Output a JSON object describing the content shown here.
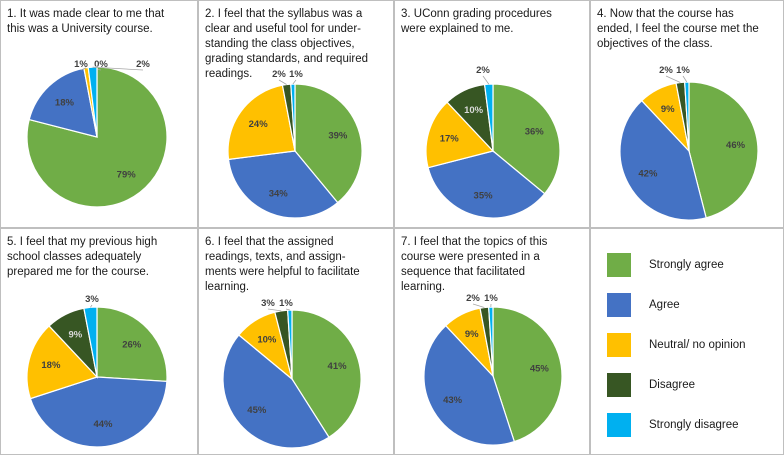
{
  "colors": {
    "strongly_agree": "#70ad47",
    "agree": "#4472c4",
    "neutral": "#ffc000",
    "disagree": "#375623",
    "strongly_disagree": "#00b0f0"
  },
  "legend": [
    {
      "label": "Strongly agree",
      "color": "#70ad47"
    },
    {
      "label": "Agree",
      "color": "#4472c4"
    },
    {
      "label": "Neutral/ no opinion",
      "color": "#ffc000"
    },
    {
      "label": "Disagree",
      "color": "#375623"
    },
    {
      "label": "Strongly disagree",
      "color": "#00b0f0"
    }
  ],
  "chart_data": [
    {
      "type": "pie",
      "title": "1. It was made clear to me that\nthis was a University course.",
      "categories": [
        "Strongly agree",
        "Agree",
        "Neutral/ no opinion",
        "Disagree",
        "Strongly disagree"
      ],
      "values": [
        79,
        18,
        1,
        0,
        2
      ],
      "labels": [
        "79%",
        "18%",
        "1%",
        "0%",
        "2%"
      ]
    },
    {
      "type": "pie",
      "title": "2. I feel that the syllabus was a\nclear and useful tool for under-\nstanding the class objectives,\ngrading standards, and required\nreadings.",
      "categories": [
        "Strongly agree",
        "Agree",
        "Neutral/ no opinion",
        "Disagree",
        "Strongly disagree"
      ],
      "values": [
        39,
        34,
        24,
        2,
        1
      ],
      "labels": [
        "39%",
        "34%",
        "24%",
        "2%",
        "1%"
      ]
    },
    {
      "type": "pie",
      "title": "3. UConn grading procedures\nwere explained to me.",
      "categories": [
        "Strongly agree",
        "Agree",
        "Neutral/ no opinion",
        "Disagree",
        "Strongly disagree"
      ],
      "values": [
        36,
        35,
        17,
        10,
        2
      ],
      "labels": [
        "36%",
        "35%",
        "17%",
        "10%",
        "2%"
      ]
    },
    {
      "type": "pie",
      "title": "4. Now that the course has\nended, I feel the course met the\nobjectives of the class.",
      "categories": [
        "Strongly agree",
        "Agree",
        "Neutral/ no opinion",
        "Disagree",
        "Strongly disagree"
      ],
      "values": [
        46,
        42,
        9,
        2,
        1
      ],
      "labels": [
        "46%",
        "42%",
        "9%",
        "2%",
        "1%"
      ]
    },
    {
      "type": "pie",
      "title": "5. I feel that my previous high\nschool classes adequately\nprepared me for the course.",
      "categories": [
        "Strongly agree",
        "Agree",
        "Neutral/ no opinion",
        "Disagree",
        "Strongly disagree"
      ],
      "values": [
        26,
        44,
        18,
        9,
        3
      ],
      "labels": [
        "26%",
        "44%",
        "18%",
        "9%",
        "3%"
      ]
    },
    {
      "type": "pie",
      "title": "6. I feel that the assigned\nreadings, texts, and assign-\nments were helpful to facilitate\nlearning.",
      "categories": [
        "Strongly agree",
        "Agree",
        "Neutral/ no opinion",
        "Disagree",
        "Strongly disagree"
      ],
      "values": [
        41,
        45,
        10,
        3,
        1
      ],
      "labels": [
        "41%",
        "45%",
        "10%",
        "3%",
        "1%"
      ]
    },
    {
      "type": "pie",
      "title": "7. I feel that the topics of this\ncourse were presented in a\nsequence that facilitated\nlearning.",
      "categories": [
        "Strongly agree",
        "Agree",
        "Neutral/ no opinion",
        "Disagree",
        "Strongly disagree"
      ],
      "values": [
        45,
        43,
        9,
        2,
        1
      ],
      "labels": [
        "45%",
        "43%",
        "9%",
        "2%",
        "1%"
      ]
    }
  ]
}
